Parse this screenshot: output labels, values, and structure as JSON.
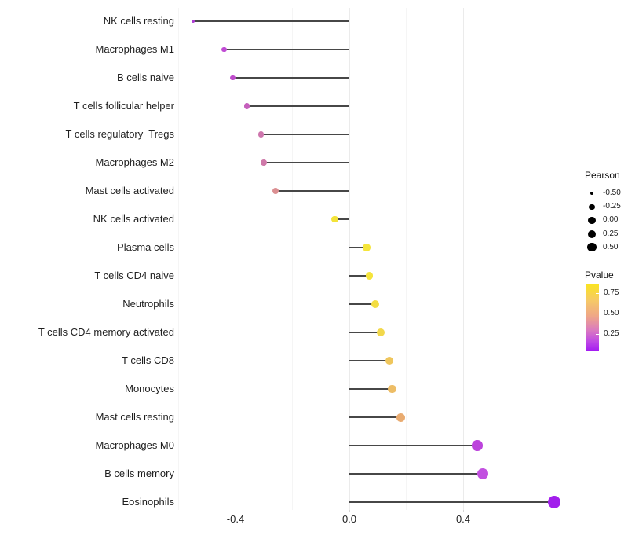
{
  "chart_data": {
    "type": "lollipop",
    "title": "",
    "xlabel": "",
    "ylabel": "",
    "xlim": [
      -0.62,
      0.78
    ],
    "grid": "vertical-only",
    "x_axis": {
      "tick_labels": [
        "-0.4",
        "0.0",
        "0.4"
      ],
      "tick_values": [
        -0.4,
        0.0,
        0.4
      ],
      "minor_grid_values": [
        -0.6,
        -0.2,
        0.2,
        0.6
      ]
    },
    "stem_color": "#474747",
    "rows": [
      {
        "label": "NK cells resting",
        "pearson": -0.55,
        "dot_color": "#ac3bd3",
        "dot_radius": 2.1
      },
      {
        "label": "Macrophages M1",
        "pearson": -0.44,
        "dot_color": "#c04bd4",
        "dot_radius": 3.4
      },
      {
        "label": "B cells naive",
        "pearson": -0.41,
        "dot_color": "#be4bcb",
        "dot_radius": 3.4
      },
      {
        "label": "T cells follicular helper",
        "pearson": -0.36,
        "dot_color": "#c55fbc",
        "dot_radius": 3.6
      },
      {
        "label": "T cells regulatory  Tregs",
        "pearson": -0.31,
        "dot_color": "#ce76ad",
        "dot_radius": 3.8
      },
      {
        "label": "Macrophages M2",
        "pearson": -0.3,
        "dot_color": "#cf79a9",
        "dot_radius": 3.8
      },
      {
        "label": "Mast cells activated",
        "pearson": -0.26,
        "dot_color": "#db8f92",
        "dot_radius": 4.0
      },
      {
        "label": "NK cells activated",
        "pearson": -0.05,
        "dot_color": "#f3e339",
        "dot_radius": 4.4
      },
      {
        "label": "Plasma cells",
        "pearson": 0.06,
        "dot_color": "#f5e53a",
        "dot_radius": 4.8
      },
      {
        "label": "T cells CD4 naive",
        "pearson": 0.07,
        "dot_color": "#f5e43c",
        "dot_radius": 4.8
      },
      {
        "label": "Neutrophils",
        "pearson": 0.09,
        "dot_color": "#f3dd42",
        "dot_radius": 5.0
      },
      {
        "label": "T cells CD4 memory activated",
        "pearson": 0.11,
        "dot_color": "#f2d84b",
        "dot_radius": 5.0
      },
      {
        "label": "T cells CD8",
        "pearson": 0.14,
        "dot_color": "#efc65c",
        "dot_radius": 5.2
      },
      {
        "label": "Monocytes",
        "pearson": 0.15,
        "dot_color": "#edbd66",
        "dot_radius": 5.3
      },
      {
        "label": "Mast cells resting",
        "pearson": 0.18,
        "dot_color": "#e9ab70",
        "dot_radius": 5.5
      },
      {
        "label": "Macrophages M0",
        "pearson": 0.45,
        "dot_color": "#bc43dc",
        "dot_radius": 6.8
      },
      {
        "label": "B cells memory",
        "pearson": 0.47,
        "dot_color": "#c250e0",
        "dot_radius": 7.0
      },
      {
        "label": "Eosinophils",
        "pearson": 0.72,
        "dot_color": "#a21eec",
        "dot_radius": 7.9
      }
    ],
    "legend_size": {
      "title": "Pearson",
      "items": [
        {
          "label": "-0.50",
          "radius": 2.3
        },
        {
          "label": "-0.25",
          "radius": 3.6
        },
        {
          "label": "0.00",
          "radius": 4.6
        },
        {
          "label": "0.25",
          "radius": 5.0
        },
        {
          "label": "0.50",
          "radius": 5.6
        }
      ],
      "dot_color": "#000000"
    },
    "legend_color": {
      "title": "Pvalue",
      "tick_labels": [
        "0.75",
        "0.50",
        "0.25"
      ],
      "gradient_top_to_bottom": [
        "#fae51f",
        "#f6c967",
        "#efa687",
        "#db7cbe",
        "#c04be4",
        "#a31bf2"
      ]
    }
  }
}
